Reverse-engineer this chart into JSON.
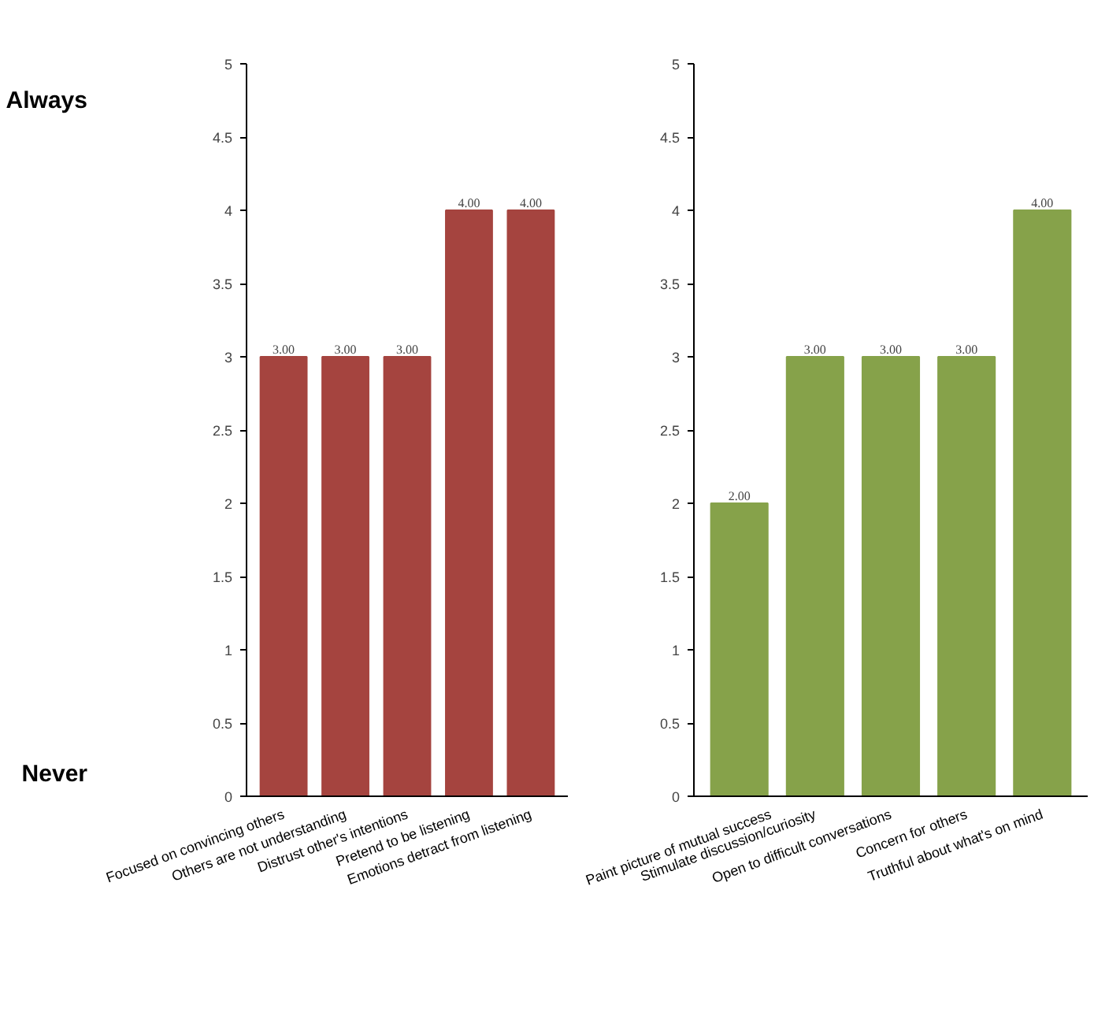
{
  "chart_data": [
    {
      "type": "bar",
      "categories": [
        "Focused on convincing others",
        "Others are not understanding",
        "Distrust other's intentions",
        "Pretend to be listening",
        "Emotions detract from listening"
      ],
      "values": [
        3,
        3,
        3,
        4,
        4
      ],
      "color": "#a5443f",
      "value_labels": [
        "3.00",
        "3.00",
        "3.00",
        "4.00",
        "4.00"
      ],
      "ylim": [
        0,
        5
      ],
      "yticks": [
        0,
        0.5,
        1,
        1.5,
        2,
        2.5,
        3,
        3.5,
        4,
        4.5,
        5
      ],
      "grid": false,
      "annotations": [
        "Always",
        "Never"
      ]
    },
    {
      "type": "bar",
      "categories": [
        "Paint picture of mutual success",
        "Stimulate discussion/curiosity",
        "Open to difficult conversations",
        "Concern for others",
        "Truthful about what's on mind"
      ],
      "values": [
        2,
        3,
        3,
        3,
        4
      ],
      "color": "#86a24a",
      "value_labels": [
        "2.00",
        "3.00",
        "3.00",
        "3.00",
        "4.00"
      ],
      "ylim": [
        0,
        5
      ],
      "yticks": [
        0,
        0.5,
        1,
        1.5,
        2,
        2.5,
        3,
        3.5,
        4,
        4.5,
        5
      ],
      "grid": false
    }
  ]
}
